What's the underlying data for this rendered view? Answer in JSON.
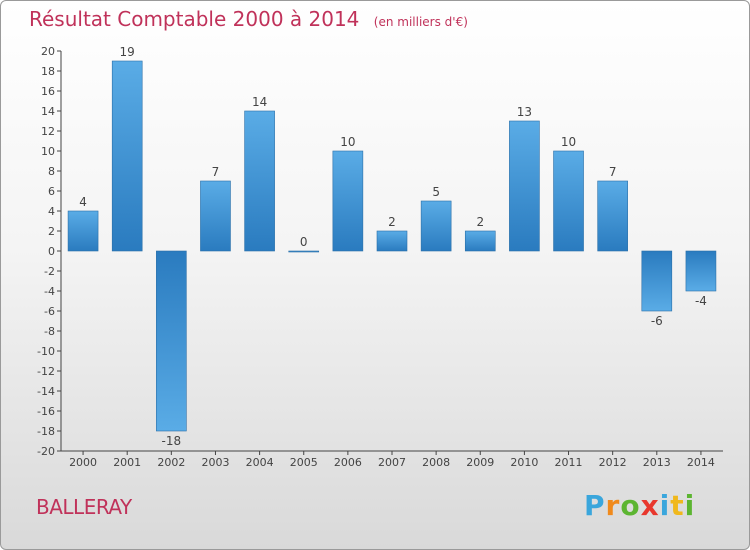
{
  "header": {
    "title": "Résultat Comptable 2000 à 2014",
    "subtitle": "(en milliers d'€)"
  },
  "footer": {
    "commune": "BALLERAY",
    "brand": {
      "letters": [
        "P",
        "r",
        "o",
        "x",
        "i",
        "t",
        "i"
      ],
      "colors": [
        "#3aa6dc",
        "#f08a1c",
        "#5cb531",
        "#e8372d",
        "#3aa6dc",
        "#f0b81c",
        "#5cb531"
      ]
    }
  },
  "chart_data": {
    "type": "bar",
    "categories": [
      "2000",
      "2001",
      "2002",
      "2003",
      "2004",
      "2005",
      "2006",
      "2007",
      "2008",
      "2009",
      "2010",
      "2011",
      "2012",
      "2013",
      "2014"
    ],
    "values": [
      4,
      19,
      -18,
      7,
      14,
      0,
      10,
      2,
      5,
      2,
      13,
      10,
      7,
      -6,
      -4
    ],
    "data_labels": [
      "4",
      "19",
      "-18",
      "7",
      "14",
      "0",
      "10",
      "2",
      "5",
      "2",
      "13",
      "10",
      "7",
      "-6",
      "-4"
    ],
    "yticks": [
      20,
      18,
      16,
      14,
      12,
      10,
      8,
      6,
      4,
      2,
      0,
      -2,
      -4,
      -6,
      -8,
      -10,
      -12,
      -14,
      -16,
      -18,
      -20
    ],
    "ylim": [
      -20,
      20
    ],
    "grid": false,
    "colors": {
      "bar_light": "#5aace6",
      "bar_dark": "#2a7bbf",
      "axis": "#444444",
      "text": "#444444"
    }
  }
}
